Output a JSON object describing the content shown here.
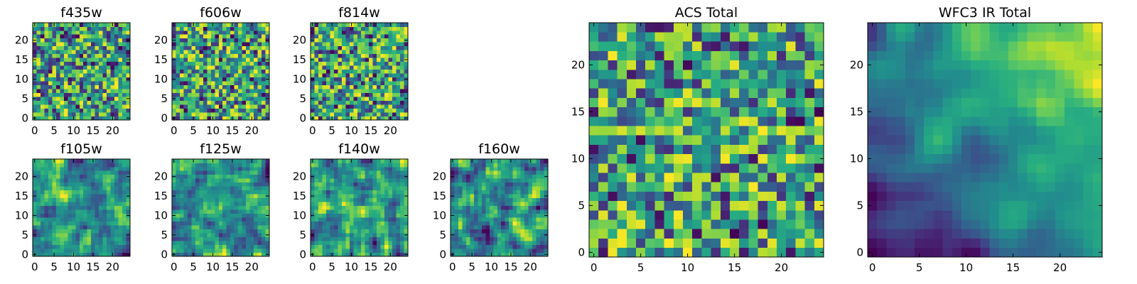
{
  "chart_data": [
    {
      "type": "heatmap",
      "title": "f435w",
      "x_ticks": [
        0,
        5,
        10,
        15,
        20
      ],
      "y_ticks": [
        0,
        5,
        10,
        15,
        20
      ],
      "xlim": [
        -0.5,
        24.5
      ],
      "ylim": [
        -0.5,
        24.5
      ],
      "grid_size": [
        25,
        25
      ],
      "colormap": "viridis",
      "texture": "noise",
      "seed": 11
    },
    {
      "type": "heatmap",
      "title": "f606w",
      "x_ticks": [
        0,
        5,
        10,
        15,
        20
      ],
      "y_ticks": [
        0,
        5,
        10,
        15,
        20
      ],
      "xlim": [
        -0.5,
        24.5
      ],
      "ylim": [
        -0.5,
        24.5
      ],
      "grid_size": [
        25,
        25
      ],
      "colormap": "viridis",
      "texture": "noise",
      "seed": 23
    },
    {
      "type": "heatmap",
      "title": "f814w",
      "x_ticks": [
        0,
        5,
        10,
        15,
        20
      ],
      "y_ticks": [
        0,
        5,
        10,
        15,
        20
      ],
      "xlim": [
        -0.5,
        24.5
      ],
      "ylim": [
        -0.5,
        24.5
      ],
      "grid_size": [
        25,
        25
      ],
      "colormap": "viridis",
      "texture": "noise",
      "seed": 37
    },
    {
      "type": "heatmap",
      "title": "f105w",
      "x_ticks": [
        0,
        5,
        10,
        15,
        20
      ],
      "y_ticks": [
        0,
        5,
        10,
        15,
        20
      ],
      "xlim": [
        -0.5,
        24.5
      ],
      "ylim": [
        -0.5,
        24.5
      ],
      "grid_size": [
        25,
        25
      ],
      "colormap": "viridis",
      "texture": "smooth",
      "seed": 41
    },
    {
      "type": "heatmap",
      "title": "f125w",
      "x_ticks": [
        0,
        5,
        10,
        15,
        20
      ],
      "y_ticks": [
        0,
        5,
        10,
        15,
        20
      ],
      "xlim": [
        -0.5,
        24.5
      ],
      "ylim": [
        -0.5,
        24.5
      ],
      "grid_size": [
        25,
        25
      ],
      "colormap": "viridis",
      "texture": "smooth",
      "seed": 53
    },
    {
      "type": "heatmap",
      "title": "f140w",
      "x_ticks": [
        0,
        5,
        10,
        15,
        20
      ],
      "y_ticks": [
        0,
        5,
        10,
        15,
        20
      ],
      "xlim": [
        -0.5,
        24.5
      ],
      "ylim": [
        -0.5,
        24.5
      ],
      "grid_size": [
        25,
        25
      ],
      "colormap": "viridis",
      "texture": "smooth",
      "seed": 67
    },
    {
      "type": "heatmap",
      "title": "f160w",
      "x_ticks": [
        0,
        5,
        10,
        15,
        20
      ],
      "y_ticks": [
        0,
        5,
        10,
        15,
        20
      ],
      "xlim": [
        -0.5,
        24.5
      ],
      "ylim": [
        -0.5,
        24.5
      ],
      "grid_size": [
        25,
        25
      ],
      "colormap": "viridis",
      "texture": "smooth",
      "seed": 79
    },
    {
      "type": "heatmap",
      "title": "ACS Total",
      "x_ticks": [
        0,
        5,
        10,
        15,
        20
      ],
      "y_ticks": [
        0,
        5,
        10,
        15,
        20
      ],
      "xlim": [
        -0.5,
        24.5
      ],
      "ylim": [
        -0.5,
        24.5
      ],
      "grid_size": [
        25,
        25
      ],
      "colormap": "viridis",
      "texture": "noise",
      "seed": 91
    },
    {
      "type": "heatmap",
      "title": "WFC3 IR Total",
      "x_ticks": [
        0,
        5,
        10,
        15,
        20
      ],
      "y_ticks": [
        0,
        5,
        10,
        15,
        20
      ],
      "xlim": [
        -0.5,
        24.5
      ],
      "ylim": [
        -0.5,
        24.5
      ],
      "grid_size": [
        25,
        25
      ],
      "colormap": "viridis",
      "texture": "gradient",
      "seed": 103
    }
  ]
}
